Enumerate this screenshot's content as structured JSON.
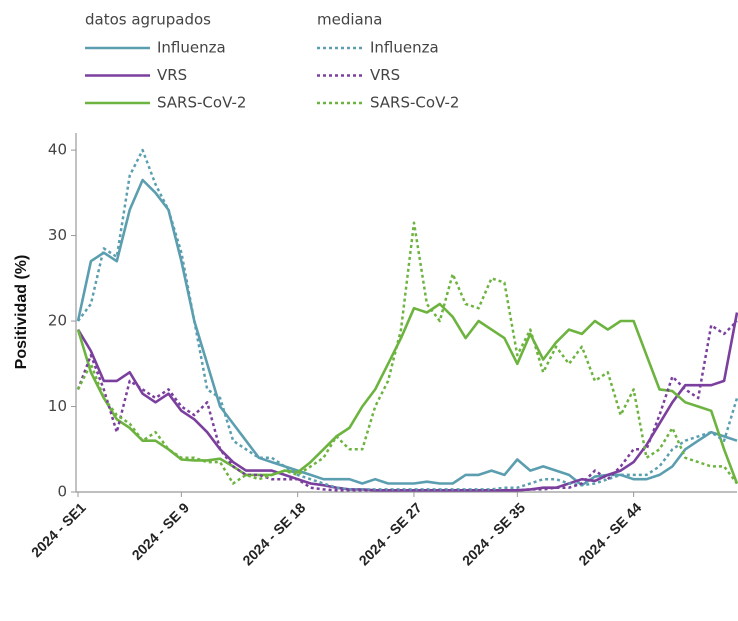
{
  "chart_data": {
    "type": "line",
    "y_label": "Positividad (%)",
    "ylim": [
      0,
      42
    ],
    "yticks": [
      0,
      10,
      20,
      30,
      40
    ],
    "grid": false,
    "legend_groups": [
      {
        "title": "datos agrupados",
        "dashed": false
      },
      {
        "title": "mediana",
        "dashed": true
      }
    ],
    "categories": [
      "2024 - SE1",
      null,
      null,
      null,
      null,
      null,
      null,
      null,
      "2024 - SE 9",
      null,
      null,
      null,
      null,
      null,
      null,
      null,
      null,
      "2024 - SE 18",
      null,
      null,
      null,
      null,
      null,
      null,
      null,
      null,
      "2024 - SE 27",
      null,
      null,
      null,
      null,
      null,
      null,
      null,
      "2024 - SE 35",
      null,
      null,
      null,
      null,
      null,
      null,
      null,
      null,
      "2024 - SE 44",
      null,
      null,
      null,
      null,
      null,
      null,
      null,
      null
    ],
    "series": [
      {
        "name": "Influenza",
        "color": "#5b9eb0",
        "dashed": false,
        "values": [
          20,
          27,
          28,
          27,
          33,
          36.5,
          35,
          33,
          27,
          20,
          15,
          10,
          8,
          6,
          4,
          3.5,
          3,
          2.5,
          2,
          1.5,
          1.5,
          1.5,
          1,
          1.5,
          1,
          1,
          1,
          1.2,
          1,
          1,
          2,
          2,
          2.5,
          2,
          3.8,
          2.5,
          3,
          2.5,
          2,
          0.8,
          1.8,
          2,
          2,
          1.5,
          1.5,
          2,
          3,
          5,
          6,
          7,
          6.5,
          6
        ]
      },
      {
        "name": "VRS",
        "color": "#7b3f9e",
        "dashed": false,
        "values": [
          19,
          16.5,
          13,
          13,
          14,
          11.5,
          10.5,
          11.5,
          9.5,
          8.5,
          7,
          5,
          3.5,
          2.5,
          2.5,
          2.5,
          2,
          1.5,
          1,
          0.8,
          0.5,
          0.3,
          0.3,
          0.2,
          0.2,
          0.2,
          0.2,
          0.2,
          0.2,
          0.2,
          0.2,
          0.2,
          0.2,
          0.2,
          0.2,
          0.3,
          0.5,
          0.5,
          1,
          1.5,
          1.3,
          2,
          2.5,
          3.5,
          5.5,
          8,
          10.5,
          12.5,
          12.5,
          12.5,
          13,
          21
        ]
      },
      {
        "name": "SARS-CoV-2",
        "color": "#6db33f",
        "dashed": false,
        "values": [
          19,
          14,
          11,
          8.5,
          7.5,
          6,
          6,
          5,
          3.8,
          3.7,
          3.7,
          3.9,
          3,
          2,
          2,
          2,
          2.5,
          2.3,
          3.5,
          5,
          6.5,
          7.5,
          10,
          12,
          15,
          18,
          21.5,
          21,
          22,
          20.5,
          18,
          20,
          19,
          18,
          15,
          18.5,
          15.5,
          17.5,
          19,
          18.5,
          20,
          19,
          20,
          20,
          16,
          12,
          11.8,
          10.5,
          10,
          9.5,
          5,
          1
        ]
      },
      {
        "name": "Influenza",
        "color": "#5b9eb0",
        "dashed": true,
        "values": [
          20,
          22,
          28.5,
          27.5,
          37,
          40,
          36,
          33,
          28,
          20,
          12,
          11,
          6,
          5,
          4,
          4,
          3,
          2,
          1.5,
          1,
          0.5,
          0.3,
          0.3,
          0.3,
          0.3,
          0.3,
          0.3,
          0.3,
          0.3,
          0.3,
          0.3,
          0.3,
          0.3,
          0.5,
          0.5,
          1,
          1.5,
          1.5,
          1,
          0.8,
          1,
          1.5,
          2,
          2,
          2,
          3,
          5,
          6,
          6.5,
          7,
          6,
          11
        ]
      },
      {
        "name": "VRS",
        "color": "#7b3f9e",
        "dashed": true,
        "values": [
          12,
          16,
          12,
          7,
          13,
          12,
          11,
          12,
          10,
          9,
          10.5,
          5,
          3,
          2,
          2,
          1.5,
          1.5,
          1.5,
          0.5,
          0.3,
          0.2,
          0.2,
          0.2,
          0.2,
          0.2,
          0.2,
          0.2,
          0.2,
          0.2,
          0.2,
          0.2,
          0.2,
          0.2,
          0.2,
          0.2,
          0.3,
          0.3,
          0.5,
          0.5,
          1,
          2.5,
          1.5,
          3,
          5,
          5,
          9,
          13.5,
          12,
          11,
          19.5,
          18.5,
          20
        ]
      },
      {
        "name": "SARS-CoV-2",
        "color": "#6db33f",
        "dashed": true,
        "values": [
          12,
          15,
          11,
          9,
          8,
          6,
          7,
          5,
          4,
          4,
          3.5,
          3.5,
          1,
          2,
          1.5,
          2,
          2.5,
          2,
          3,
          4,
          6.5,
          5,
          5,
          10,
          13,
          19,
          31.5,
          22,
          20,
          25.5,
          22,
          21.5,
          25,
          24.5,
          16,
          19,
          14,
          17,
          15,
          17,
          13,
          14,
          9,
          12,
          4,
          5,
          7.5,
          4,
          3.5,
          3,
          3,
          1
        ]
      }
    ]
  }
}
